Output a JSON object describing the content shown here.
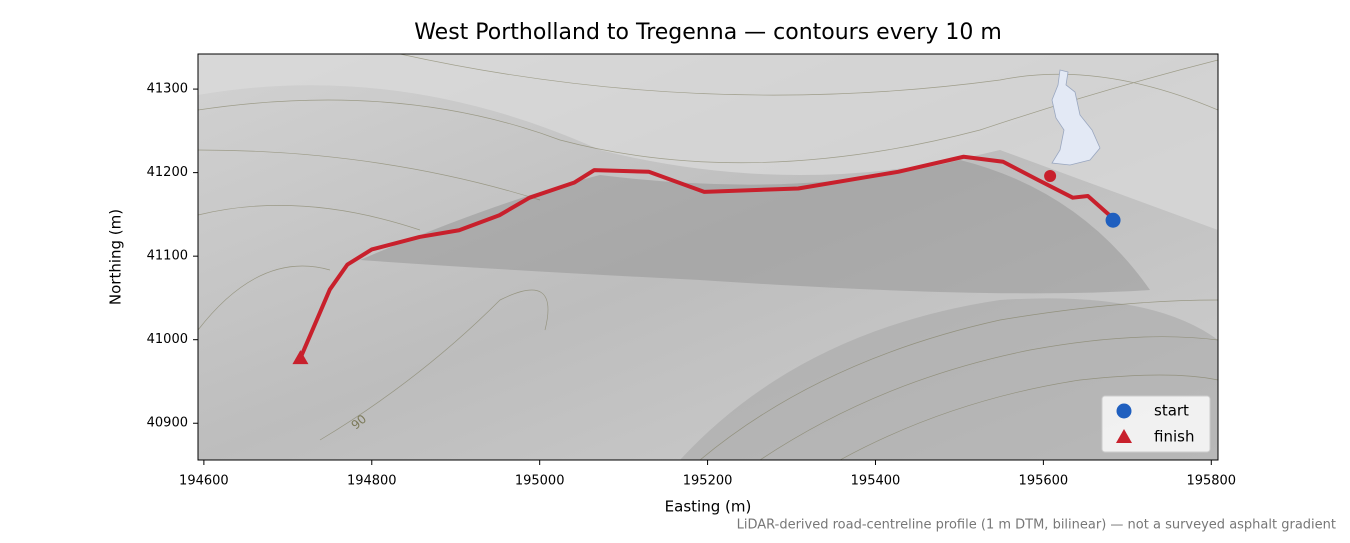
{
  "chart_data": {
    "type": "line",
    "title": "West Portholland to Tregenna — contours every 10 m",
    "xlabel": "Easting (m)",
    "ylabel": "Northing (m)",
    "note": "LiDAR-derived road-centreline profile (1 m DTM, bilinear) — not a surveyed asphalt gradient",
    "route": {
      "color": "#c8202c",
      "x": [
        194715,
        194750,
        194771,
        194800,
        194857,
        194904,
        194952,
        194988,
        195041,
        195065,
        195130,
        195196,
        195308,
        195427,
        195505,
        195552,
        195594,
        195635,
        195653,
        195680
      ],
      "y": [
        40978,
        41060,
        41090,
        41108,
        41123,
        41131,
        41149,
        41170,
        41188,
        41203,
        41201,
        41177,
        41181,
        41201,
        41219,
        41213,
        41191,
        41170,
        41172,
        41148
      ]
    },
    "points": [
      {
        "name": "start",
        "marker": "circle",
        "color": "#1f5fbf",
        "x": 195683,
        "y": 41143
      },
      {
        "name": "finish",
        "marker": "triangle",
        "color": "#c8202c",
        "x": 194715,
        "y": 40978
      }
    ],
    "waypoint": {
      "x": 195608,
      "y": 41196,
      "color": "#c8202c"
    },
    "contour_label": {
      "text": "90",
      "x": 194785,
      "y": 40901
    },
    "xlim": [
      194593,
      195808
    ],
    "ylim": [
      40856,
      41342
    ],
    "xticks": [
      194600,
      194800,
      195000,
      195200,
      195400,
      195600,
      195800
    ],
    "yticks": [
      40900,
      41000,
      41100,
      41200,
      41300
    ],
    "legend": "lower right"
  }
}
